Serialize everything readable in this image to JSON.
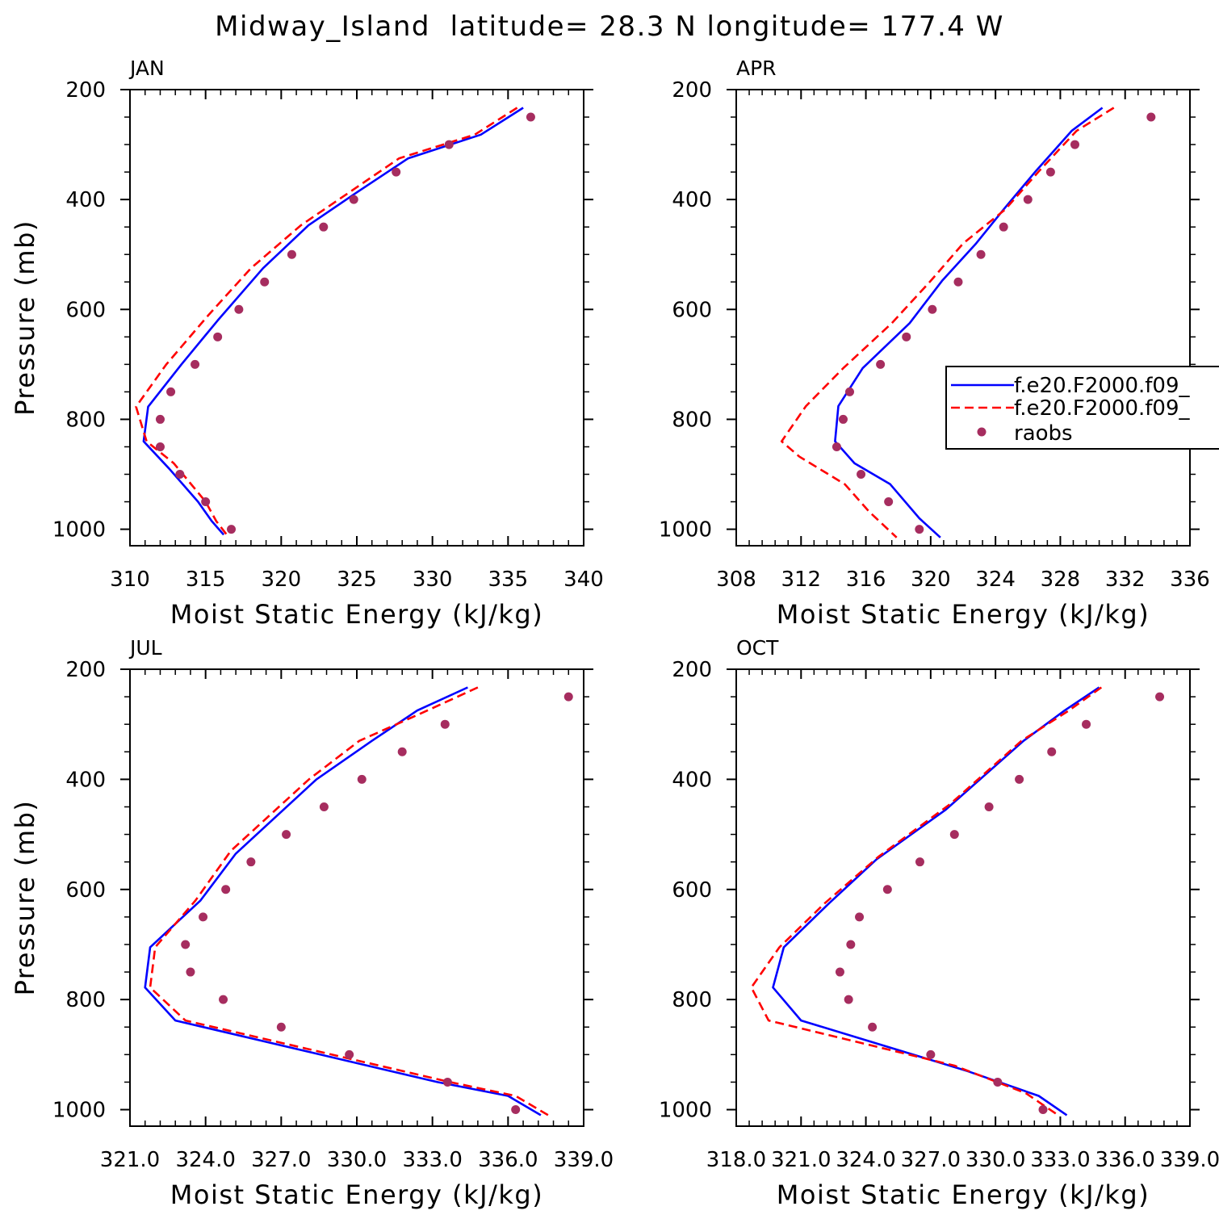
{
  "title": "Midway_Island  latitude= 28.3 N longitude= 177.4 W",
  "colors": {
    "model1": "#0000ff",
    "model2": "#ff0000",
    "raobs": "#a62d5f",
    "axis": "#000000"
  },
  "legend": {
    "items": [
      {
        "label": "f.e20.F2000.f09_",
        "style": "solid",
        "color": "#0000ff"
      },
      {
        "label": "f.e20.F2000.f09_",
        "style": "dashed",
        "color": "#ff0000"
      },
      {
        "label": "raobs",
        "style": "dot",
        "color": "#a62d5f"
      }
    ]
  },
  "chart_data": [
    {
      "type": "line",
      "panel": "JAN",
      "title": "JAN",
      "xlabel": "Moist Static Energy (kJ/kg)",
      "ylabel": "Pressure (mb)",
      "xlim": [
        310,
        340
      ],
      "ylim": [
        1030,
        200
      ],
      "y_reversed": true,
      "xticks": [
        "310",
        "315",
        "320",
        "325",
        "330",
        "335",
        "340"
      ],
      "yticks": [
        "200",
        "400",
        "600",
        "800",
        "1000"
      ],
      "series": [
        {
          "name": "f.e20.F2000.f09_",
          "style": "solid",
          "x": [
            336.0,
            333.2,
            328.4,
            325.0,
            321.8,
            318.8,
            315.8,
            313.4,
            311.2,
            310.9,
            312.6,
            314.5,
            315.4,
            316.2
          ],
          "y": [
            233,
            282,
            325,
            387,
            447,
            525,
            620,
            700,
            777,
            840,
            890,
            950,
            985,
            1010
          ]
        },
        {
          "name": "f.e20.F2000.f09_",
          "style": "dashed",
          "x": [
            335.6,
            332.8,
            327.8,
            324.5,
            321.3,
            318.0,
            315.2,
            312.4,
            310.4,
            311.1,
            312.9,
            315.0,
            315.7,
            316.4
          ],
          "y": [
            233,
            282,
            325,
            387,
            447,
            525,
            610,
            700,
            777,
            840,
            880,
            950,
            985,
            1010
          ]
        },
        {
          "name": "raobs",
          "style": "dot",
          "x": [
            336.5,
            331.1,
            327.6,
            324.8,
            322.8,
            320.7,
            318.9,
            317.2,
            315.8,
            314.3,
            312.7,
            312.0,
            312.0,
            313.3,
            315.0,
            316.7
          ],
          "y": [
            250,
            300,
            350,
            400,
            450,
            500,
            550,
            600,
            650,
            700,
            750,
            800,
            850,
            900,
            950,
            1000
          ]
        }
      ]
    },
    {
      "type": "line",
      "panel": "APR",
      "title": "APR",
      "xlabel": "Moist Static Energy (kJ/kg)",
      "ylabel": "",
      "xlim": [
        308,
        336
      ],
      "ylim": [
        1030,
        200
      ],
      "y_reversed": true,
      "xticks": [
        "308",
        "312",
        "316",
        "320",
        "324",
        "328",
        "332",
        "336"
      ],
      "yticks": [
        "200",
        "400",
        "600",
        "800",
        "1000"
      ],
      "series": [
        {
          "name": "f.e20.F2000.f09_",
          "style": "solid",
          "x": [
            330.6,
            328.7,
            326.5,
            324.5,
            322.8,
            320.7,
            318.7,
            315.8,
            314.3,
            314.1,
            315.3,
            317.5,
            319.3,
            320.6
          ],
          "y": [
            233,
            275,
            348,
            418,
            480,
            548,
            625,
            707,
            776,
            840,
            880,
            918,
            980,
            1015
          ]
        },
        {
          "name": "f.e20.F2000.f09_",
          "style": "dashed",
          "x": [
            331.3,
            329.0,
            326.7,
            324.6,
            322.0,
            320.0,
            317.6,
            314.6,
            312.3,
            310.8,
            311.9,
            314.7,
            316.2,
            317.9
          ],
          "y": [
            233,
            275,
            348,
            418,
            480,
            548,
            625,
            707,
            776,
            840,
            868,
            918,
            968,
            1015
          ]
        },
        {
          "name": "raobs",
          "style": "dot",
          "x": [
            333.6,
            328.9,
            327.4,
            326.0,
            324.5,
            323.1,
            321.7,
            320.1,
            318.5,
            316.9,
            315.0,
            314.6,
            314.2,
            315.7,
            317.4,
            319.3
          ],
          "y": [
            250,
            300,
            350,
            400,
            450,
            500,
            550,
            600,
            650,
            700,
            750,
            800,
            850,
            900,
            950,
            1000
          ]
        }
      ]
    },
    {
      "type": "line",
      "panel": "JUL",
      "title": "JUL",
      "xlabel": "Moist Static Energy (kJ/kg)",
      "ylabel": "Pressure (mb)",
      "xlim": [
        321,
        339
      ],
      "ylim": [
        1030,
        200
      ],
      "y_reversed": true,
      "xticks": [
        "321.0",
        "324.0",
        "327.0",
        "330.0",
        "333.0",
        "336.0",
        "339.0"
      ],
      "yticks": [
        "200",
        "400",
        "600",
        "800",
        "1000"
      ],
      "series": [
        {
          "name": "f.e20.F2000.f09_",
          "style": "solid",
          "x": [
            334.4,
            332.4,
            330.6,
            328.4,
            325.2,
            323.8,
            321.8,
            321.6,
            322.8,
            333.2,
            336.0,
            337.3
          ],
          "y": [
            233,
            275,
            330,
            400,
            535,
            620,
            705,
            778,
            838,
            950,
            975,
            1010
          ]
        },
        {
          "name": "f.e20.F2000.f09_",
          "style": "dashed",
          "x": [
            334.8,
            332.8,
            330.1,
            328.1,
            325.0,
            323.6,
            322.0,
            321.8,
            323.2,
            333.7,
            336.3,
            337.7
          ],
          "y": [
            233,
            275,
            330,
            400,
            530,
            620,
            705,
            778,
            838,
            950,
            975,
            1013
          ]
        },
        {
          "name": "raobs",
          "style": "dot",
          "x": [
            338.4,
            333.5,
            331.8,
            330.2,
            328.7,
            327.2,
            325.8,
            324.8,
            323.9,
            323.2,
            323.4,
            324.7,
            327.0,
            329.7,
            333.6,
            336.3
          ],
          "y": [
            250,
            300,
            350,
            400,
            450,
            500,
            550,
            600,
            650,
            700,
            750,
            800,
            850,
            900,
            950,
            1000
          ]
        }
      ]
    },
    {
      "type": "line",
      "panel": "OCT",
      "title": "OCT",
      "xlabel": "Moist Static Energy (kJ/kg)",
      "ylabel": "",
      "xlim": [
        318.0,
        339.0
      ],
      "ylim": [
        1030,
        200
      ],
      "y_reversed": true,
      "xticks": [
        "318.0",
        "321.0",
        "324.0",
        "327.0",
        "330.0",
        "333.0",
        "336.0",
        "339.0"
      ],
      "yticks": [
        "200",
        "400",
        "600",
        "800",
        "1000"
      ],
      "series": [
        {
          "name": "f.e20.F2000.f09_",
          "style": "solid",
          "x": [
            334.8,
            333.2,
            331.3,
            327.7,
            324.5,
            322.3,
            320.2,
            319.7,
            321.0,
            328.7,
            332.0,
            333.3
          ],
          "y": [
            233,
            275,
            330,
            455,
            545,
            625,
            705,
            778,
            838,
            930,
            975,
            1010
          ]
        },
        {
          "name": "f.e20.F2000.f09_",
          "style": "dashed",
          "x": [
            334.9,
            333.4,
            331.2,
            327.9,
            324.6,
            322.1,
            320.0,
            318.7,
            319.5,
            328.1,
            331.4,
            332.9
          ],
          "y": [
            233,
            275,
            330,
            445,
            540,
            625,
            705,
            778,
            838,
            920,
            970,
            1010
          ]
        },
        {
          "name": "raobs",
          "style": "dot",
          "x": [
            337.6,
            334.2,
            332.6,
            331.1,
            329.7,
            328.1,
            326.5,
            325.0,
            323.7,
            323.3,
            322.8,
            323.2,
            324.3,
            327.0,
            330.1,
            332.2
          ],
          "y": [
            250,
            300,
            350,
            400,
            450,
            500,
            550,
            600,
            650,
            700,
            750,
            800,
            850,
            900,
            950,
            1000
          ]
        }
      ]
    }
  ]
}
